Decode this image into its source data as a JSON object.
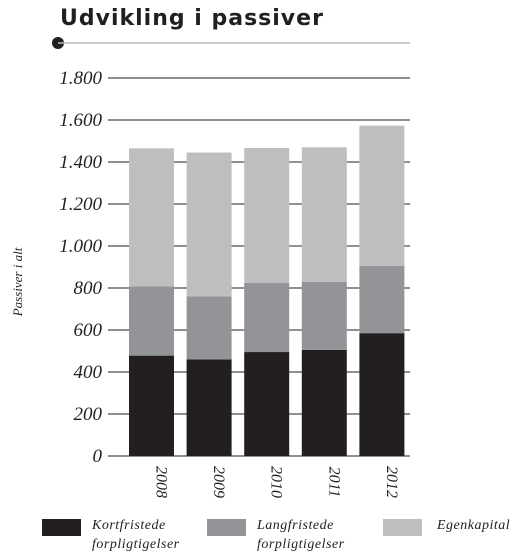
{
  "chart_data": {
    "type": "bar",
    "stacked": true,
    "title": "Udvikling i passiver",
    "ylabel": "Passiver i alt",
    "xlabel": "",
    "ylim": [
      0,
      1800
    ],
    "yticks": [
      0,
      200,
      400,
      600,
      800,
      1000,
      1200,
      1400,
      1600,
      1800
    ],
    "ytick_labels": [
      "0",
      "200",
      "400",
      "600",
      "800",
      "1.000",
      "1.200",
      "1.400",
      "1.600",
      "1.800"
    ],
    "categories": [
      "2008",
      "2009",
      "2010",
      "2011",
      "2012"
    ],
    "series": [
      {
        "name": "Kortfristede\nforpligtigelser",
        "color": "#231f20",
        "values": [
          478,
          460,
          495,
          505,
          585
        ]
      },
      {
        "name": "Langfristede\nforpligtigelser",
        "color": "#929497",
        "values": [
          330,
          300,
          330,
          325,
          320
        ]
      },
      {
        "name": "Egenkapital",
        "color": "#bcbec0",
        "values": [
          657,
          685,
          642,
          640,
          668
        ]
      }
    ],
    "grid": true,
    "legend_position": "bottom"
  }
}
